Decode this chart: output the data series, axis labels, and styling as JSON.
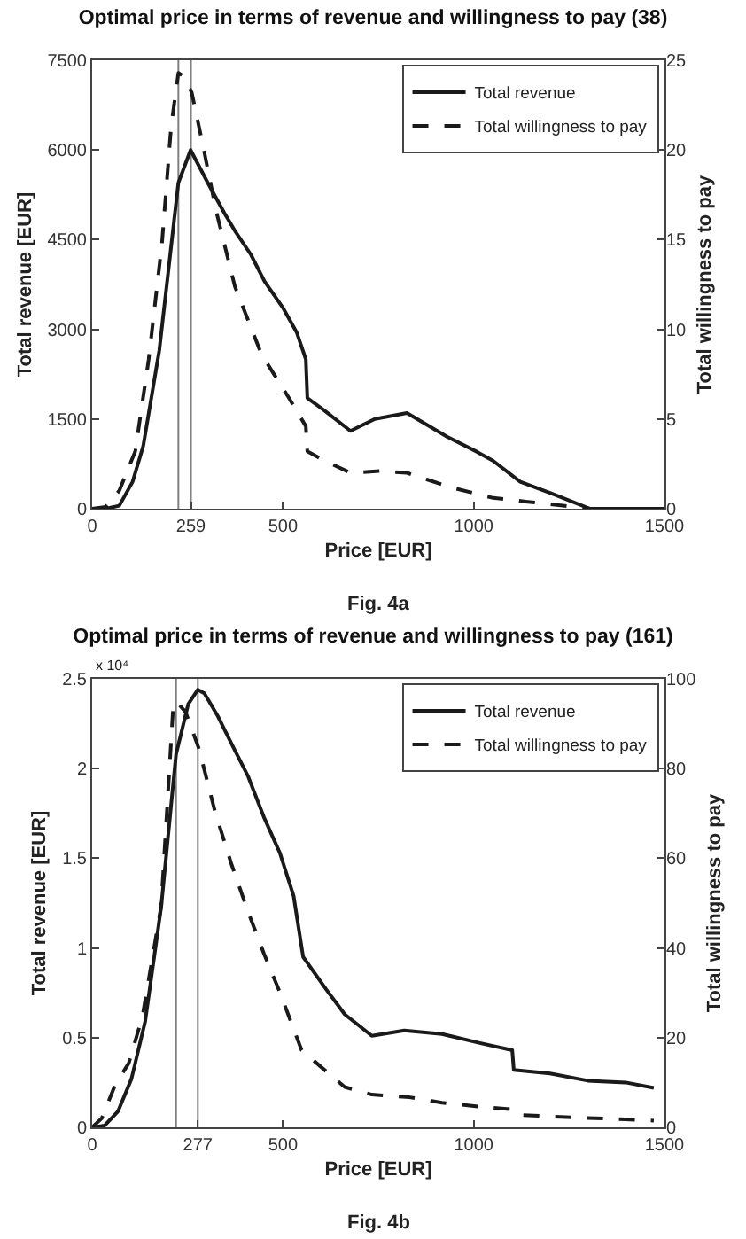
{
  "chart_data": [
    {
      "type": "line",
      "title": "Optimal price in terms of revenue and willingness to pay (38)",
      "xlabel": "Price [EUR]",
      "ylabel": "Total revenue [EUR]",
      "y2label": "Total willingness to pay",
      "annotations": [
        "Fig. 4a"
      ],
      "xlim": [
        0,
        1500
      ],
      "xticks": [
        0,
        259,
        500,
        1000,
        1500
      ],
      "ylim": [
        0,
        7500
      ],
      "yticks": [
        0,
        1500,
        3000,
        4500,
        6000,
        7500
      ],
      "y2lim": [
        0,
        25
      ],
      "y2ticks": [
        0,
        5,
        10,
        15,
        20,
        25
      ],
      "grid": false,
      "legend": "top right",
      "marker": "none",
      "ref_lines": [
        {
          "axis": "x",
          "value": 226,
          "label": null,
          "color": "#808080"
        },
        {
          "axis": "x",
          "value": 259,
          "label": null,
          "color": "#808080"
        }
      ],
      "series": [
        {
          "name": "Total revenue",
          "color": "#1a1a1a",
          "line_style": "solid",
          "x": [
            0,
            35,
            71,
            106,
            134,
            176,
            226,
            258,
            303,
            346,
            374,
            416,
            452,
            501,
            536,
            560,
            564,
            607,
            677,
            741,
            825,
            931,
            1009,
            1051,
            1122,
            1206,
            1305,
            1500
          ],
          "values": [
            0,
            0,
            50,
            450,
            1050,
            2650,
            5450,
            6000,
            5450,
            4950,
            4650,
            4250,
            3800,
            3350,
            2950,
            2500,
            1850,
            1650,
            1300,
            1500,
            1600,
            1200,
            950,
            800,
            450,
            250,
            0,
            0
          ]
        },
        {
          "name": "Total willingness to pay",
          "color": "#1a1a1a",
          "line_style": "dashed",
          "axis": "y2",
          "x": [
            0,
            35,
            71,
            113,
            148,
            183,
            207,
            226,
            240,
            261,
            289,
            325,
            374,
            444,
            515,
            560,
            564,
            607,
            677,
            755,
            825,
            938,
            1051,
            1136,
            1305,
            1500
          ],
          "values": [
            0,
            0.1,
            1,
            3.2,
            8.3,
            14.8,
            21.3,
            24.3,
            24.1,
            23.2,
            20.4,
            16.6,
            12.4,
            8.6,
            6.2,
            4.6,
            3.2,
            2.7,
            2,
            2.1,
            2,
            1.2,
            0.6,
            0.4,
            0,
            0
          ]
        }
      ]
    },
    {
      "type": "line",
      "title": "Optimal price in terms of revenue and willingness to pay (161)",
      "xlabel": "Price [EUR]",
      "ylabel": "Total revenue [EUR]",
      "y2label": "Total willingness to pay",
      "annotations": [
        "x 10⁴",
        "Fig. 4b"
      ],
      "xlim": [
        0,
        1500
      ],
      "xticks": [
        0,
        277,
        500,
        1000,
        1500
      ],
      "ylim": [
        0,
        2.5
      ],
      "yticks": [
        0,
        0.5,
        1,
        1.5,
        2,
        2.5
      ],
      "y2lim": [
        0,
        100
      ],
      "y2ticks": [
        0,
        20,
        40,
        60,
        80,
        100
      ],
      "grid": false,
      "legend": "top right",
      "marker": "none",
      "ref_lines": [
        {
          "axis": "x",
          "value": 220,
          "label": null,
          "color": "#808080"
        },
        {
          "axis": "x",
          "value": 277,
          "label": null,
          "color": "#808080"
        }
      ],
      "series": [
        {
          "name": "Total revenue",
          "color": "#1a1a1a",
          "line_style": "solid",
          "x": [
            0,
            33,
            68,
            103,
            139,
            181,
            220,
            252,
            277,
            294,
            330,
            372,
            408,
            450,
            492,
            528,
            553,
            613,
            662,
            733,
            818,
            917,
            1016,
            1101,
            1105,
            1200,
            1299,
            1398,
            1472
          ],
          "values": [
            0,
            0.01,
            0.09,
            0.27,
            0.59,
            1.23,
            2.08,
            2.36,
            2.44,
            2.42,
            2.29,
            2.11,
            1.96,
            1.73,
            1.53,
            1.29,
            0.95,
            0.77,
            0.63,
            0.51,
            0.54,
            0.52,
            0.47,
            0.43,
            0.32,
            0.3,
            0.26,
            0.25,
            0.22
          ]
        },
        {
          "name": "Total willingness to pay",
          "color": "#1a1a1a",
          "line_style": "dashed",
          "axis": "y2",
          "x": [
            0,
            25,
            61,
            96,
            132,
            181,
            212,
            220,
            245,
            280,
            322,
            365,
            408,
            450,
            492,
            549,
            613,
            662,
            733,
            832,
            917,
            1016,
            1101,
            1115,
            1257,
            1398,
            1472
          ],
          "values": [
            0,
            2,
            9.6,
            14.3,
            24.8,
            49.4,
            93.2,
            95,
            92.6,
            84.4,
            70.4,
            58.7,
            48.2,
            38.8,
            30.1,
            17.2,
            12.5,
            9,
            7.3,
            6.7,
            5.5,
            4.6,
            4,
            2.8,
            2.2,
            1.8,
            1.5
          ]
        }
      ]
    }
  ]
}
